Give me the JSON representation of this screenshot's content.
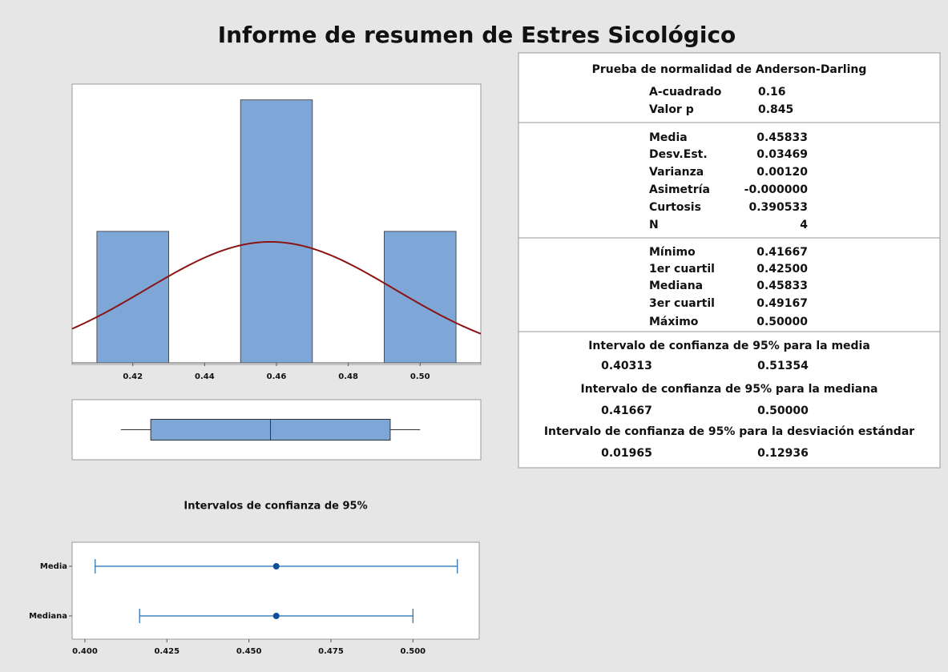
{
  "title": "Informe de resumen de Estres Sicológico",
  "chart_data": [
    {
      "type": "histogram",
      "bins": [
        0.41,
        0.43,
        0.45,
        0.47,
        0.49,
        0.51
      ],
      "values": [
        1,
        0,
        2,
        0,
        1
      ],
      "color": "#7ea7d8",
      "fit_color": "#8b1414",
      "xlim": [
        0.4031,
        0.5169
      ],
      "ylim": [
        0,
        2.12
      ],
      "xticks": [
        0.42,
        0.44,
        0.46,
        0.48,
        {
          "value": 0.5,
          "label": "0.50"
        }
      ]
    },
    {
      "type": "box",
      "min": 0.41667,
      "q1": 0.425,
      "median": 0.45833,
      "q3": 0.49167,
      "max": 0.5,
      "color": "#7ea7d8",
      "xlim": [
        0.4031,
        0.5169
      ]
    },
    {
      "type": "interval",
      "title": "Intervalos de confianza de 95%",
      "categories": [
        "Media",
        "Mediana"
      ],
      "values": [
        0.45833,
        0.45833
      ],
      "low": [
        0.40313,
        0.41667
      ],
      "high": [
        0.51354,
        0.5
      ],
      "color": "#1f6db0",
      "xlim": [
        0.3961,
        0.5202
      ],
      "xticks": [
        {
          "value": 0.4,
          "label": "0.400"
        },
        0.425,
        {
          "value": 0.45,
          "label": "0.450"
        },
        0.475,
        {
          "value": 0.5,
          "label": "0.500"
        }
      ]
    }
  ],
  "stats": {
    "sections": [
      {
        "title": "Prueba de normalidad de Anderson-Darling",
        "rows": [
          [
            "A-cuadrado",
            "0.16"
          ],
          [
            "Valor p",
            "0.845"
          ]
        ]
      },
      {
        "rows": [
          [
            "Media",
            "0.45833"
          ],
          [
            "Desv.Est.",
            "0.03469"
          ],
          [
            "Varianza",
            "0.00120"
          ],
          [
            "Asimetría",
            "-0.000000"
          ],
          [
            "Curtosis",
            "0.390533"
          ],
          [
            "N",
            "4"
          ]
        ]
      },
      {
        "rows": [
          [
            "Mínimo",
            "0.41667"
          ],
          [
            "1er cuartil",
            "0.42500"
          ],
          [
            "Mediana",
            "0.45833"
          ],
          [
            "3er cuartil",
            "0.49167"
          ],
          [
            "Máximo",
            "0.50000"
          ]
        ]
      }
    ],
    "intervals": [
      {
        "title": "Intervalo de confianza de 95% para la media",
        "low": "0.40313",
        "high": "0.51354"
      },
      {
        "title": "Intervalo de confianza de 95% para la mediana",
        "low": "0.41667",
        "high": "0.50000"
      },
      {
        "title": "Intervalo de confianza de 95% para la desviación estándar",
        "low": "0.01965",
        "high": "0.12936"
      }
    ]
  }
}
